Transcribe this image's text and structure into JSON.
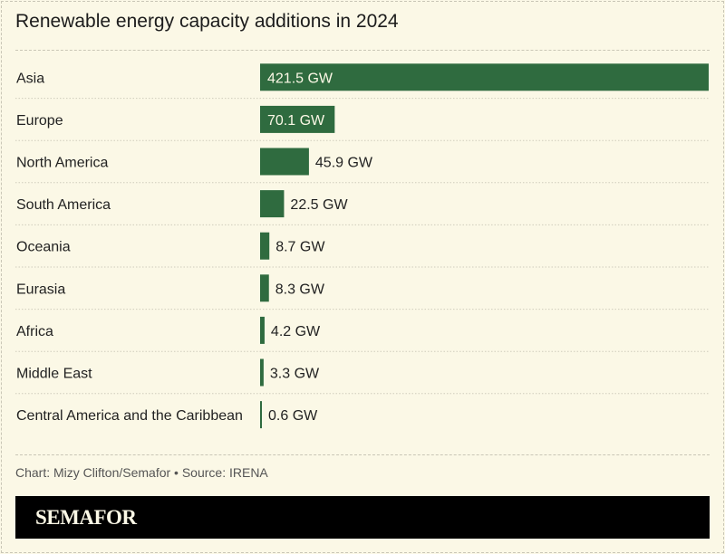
{
  "chart_data": {
    "type": "bar",
    "orientation": "horizontal",
    "title": "Renewable energy capacity additions in 2024",
    "categories": [
      "Asia",
      "Europe",
      "North America",
      "South America",
      "Oceania",
      "Eurasia",
      "Africa",
      "Middle East",
      "Central America and the Caribbean"
    ],
    "values": [
      421.5,
      70.1,
      45.9,
      22.5,
      8.7,
      8.3,
      4.2,
      3.3,
      0.6
    ],
    "data_labels": [
      "421.5 GW",
      "70.1 GW",
      "45.9 GW",
      "22.5 GW",
      "8.7 GW",
      "8.3 GW",
      "4.2 GW",
      "3.3 GW",
      "0.6 GW"
    ],
    "unit": "GW",
    "xlim": [
      0,
      421.5
    ],
    "grid": false,
    "bar_color": "#2f6b3f"
  },
  "credit": "Chart: Mizy Clifton/Semafor • Source: IRENA",
  "logo": "SEMAFOR"
}
